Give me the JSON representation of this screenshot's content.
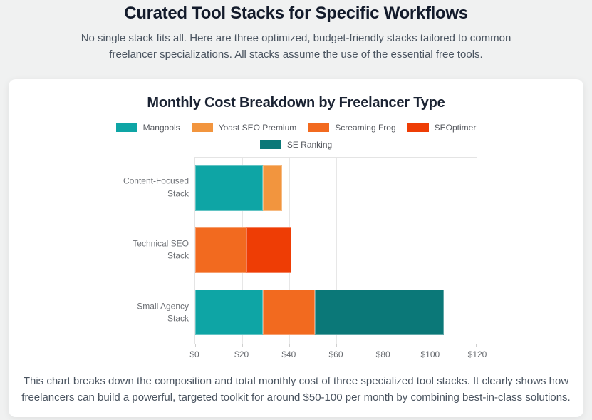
{
  "header": {
    "title": "Curated Tool Stacks for Specific Workflows",
    "subtitle": "No single stack fits all. Here are three optimized, budget-friendly stacks tailored to common freelancer specializations. All stacks assume the use of the essential free tools."
  },
  "chart": {
    "title": "Monthly Cost Breakdown by Freelancer Type",
    "caption": "This chart breaks down the composition and total monthly cost of three specialized tool stacks. It clearly shows how freelancers can build a powerful, targeted toolkit for around $50-100 per month by combining best-in-class solutions."
  },
  "chart_data": {
    "type": "bar",
    "orientation": "horizontal",
    "stacked": true,
    "title": "Monthly Cost Breakdown by Freelancer Type",
    "categories": [
      "Content-Focused Stack",
      "Technical SEO Stack",
      "Small Agency Stack"
    ],
    "series": [
      {
        "name": "Mangools",
        "color": "#0ea5a5",
        "values": [
          29,
          0,
          29
        ]
      },
      {
        "name": "Yoast SEO Premium",
        "color": "#f2953e",
        "values": [
          8,
          0,
          0
        ]
      },
      {
        "name": "Screaming Frog",
        "color": "#f26a1f",
        "values": [
          0,
          22,
          22
        ]
      },
      {
        "name": "SEOptimer",
        "color": "#ee3d05",
        "values": [
          0,
          19,
          0
        ]
      },
      {
        "name": "SE Ranking",
        "color": "#0b7878",
        "values": [
          0,
          0,
          55
        ]
      }
    ],
    "totals": [
      37,
      41,
      106
    ],
    "xlabel": "",
    "ylabel": "",
    "xlim": [
      0,
      120
    ],
    "xticklabels": [
      "$0",
      "$20",
      "$40",
      "$60",
      "$80",
      "$100",
      "$120"
    ],
    "grid": true,
    "legend_position": "top",
    "legend_rows": [
      4,
      1
    ]
  },
  "colors": {
    "page_background": "#f0f1f1",
    "card_background": "#ffffff",
    "title_text": "#131b2b",
    "body_text": "#4a5460",
    "axis_text": "#66696e",
    "gridline": "#e7e7e7"
  }
}
